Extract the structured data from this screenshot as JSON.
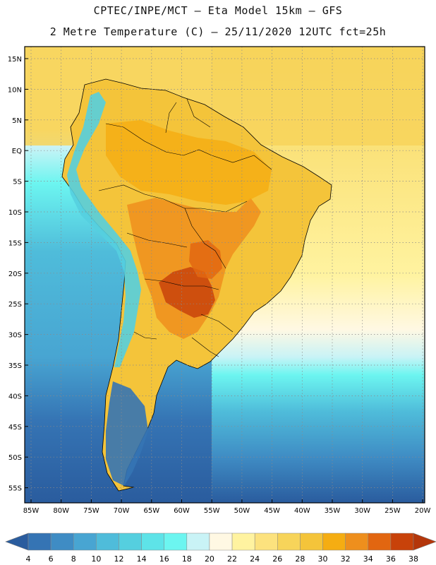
{
  "title_line1": "CPTEC/INPE/MCT –  Eta Model 15km – GFS",
  "title_line2": "2 Metre Temperature (C) – 25/11/2020 12UTC fct=25h",
  "lat_labels": [
    "15N",
    "10N",
    "5N",
    "EQ",
    "5S",
    "10S",
    "15S",
    "20S",
    "25S",
    "30S",
    "35S",
    "40S",
    "45S",
    "50S",
    "55S"
  ],
  "lon_labels": [
    "85W",
    "80W",
    "75W",
    "70W",
    "65W",
    "60W",
    "55W",
    "50W",
    "45W",
    "40W",
    "35W",
    "30W",
    "25W",
    "20W"
  ],
  "colorbar": {
    "labels": [
      "4",
      "6",
      "8",
      "10",
      "12",
      "14",
      "16",
      "18",
      "20",
      "22",
      "24",
      "26",
      "28",
      "30",
      "32",
      "34",
      "36",
      "38"
    ],
    "colors": [
      "#2a5c9e",
      "#3574b4",
      "#3f8cc4",
      "#48a5d2",
      "#4fbcda",
      "#55cfdf",
      "#5ee3e8",
      "#6cf5f0",
      "#c9f3f6",
      "#fff8e3",
      "#fff3a0",
      "#fce27e",
      "#f7d45a",
      "#f4c43a",
      "#f5ad12",
      "#ee8f1d",
      "#e26610",
      "#c8420a",
      "#b4360a"
    ]
  },
  "colors": {
    "ocean_south": "#2a5c9e",
    "ocean_mid": "#4fbcda",
    "ocean_warm": "#fce27e",
    "land_base": "#f4c43a",
    "land_hot": "#ee8f1d",
    "land_hottest": "#c8420a",
    "andes": "#55cfdf"
  }
}
